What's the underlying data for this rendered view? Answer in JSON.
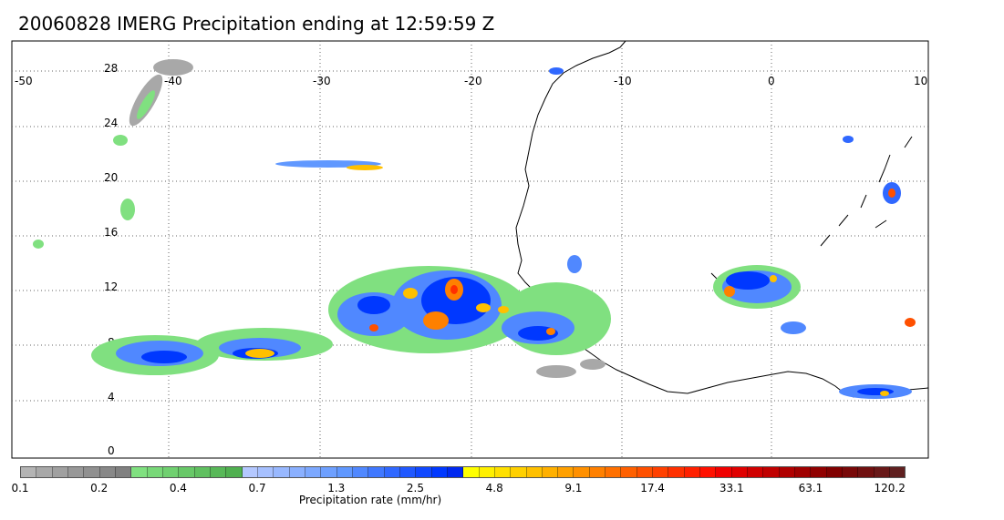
{
  "title": "20060828 IMERG Precipitation ending at 12:59:59 Z",
  "map": {
    "lon_ticks": [
      "-50",
      "-40",
      "-30",
      "-20",
      "-10",
      "0",
      "10"
    ],
    "lat_ticks": [
      "28",
      "24",
      "20",
      "16",
      "12",
      "8",
      "4",
      "0"
    ]
  },
  "colorbar": {
    "title": "Precipitation rate (mm/hr)",
    "labels": [
      "0.1",
      "0.2",
      "0.4",
      "0.7",
      "1.3",
      "2.5",
      "4.8",
      "9.1",
      "17.4",
      "33.1",
      "63.1",
      "120.2"
    ],
    "colors": [
      "#b4b4b4",
      "#a8a8a8",
      "#a0a0a0",
      "#989898",
      "#909090",
      "#888888",
      "#808080",
      "#80e080",
      "#78d878",
      "#70d070",
      "#68c868",
      "#60c060",
      "#58b858",
      "#50b050",
      "#b4c8ff",
      "#a6c0ff",
      "#98b8ff",
      "#8ab0ff",
      "#7ca8ff",
      "#6ea0ff",
      "#6098ff",
      "#5088ff",
      "#4078ff",
      "#3068ff",
      "#2058ff",
      "#1048ff",
      "#0038ff",
      "#0028f0",
      "#ffff00",
      "#fff000",
      "#ffe000",
      "#ffd000",
      "#ffc000",
      "#ffb000",
      "#ffa000",
      "#ff9000",
      "#ff8000",
      "#ff7000",
      "#ff6000",
      "#ff5000",
      "#ff4000",
      "#ff3000",
      "#ff2000",
      "#ff1000",
      "#f00000",
      "#e00000",
      "#d00000",
      "#c00000",
      "#b00000",
      "#a00000",
      "#900000",
      "#800000",
      "#780808",
      "#701010",
      "#681818",
      "#602020"
    ]
  }
}
